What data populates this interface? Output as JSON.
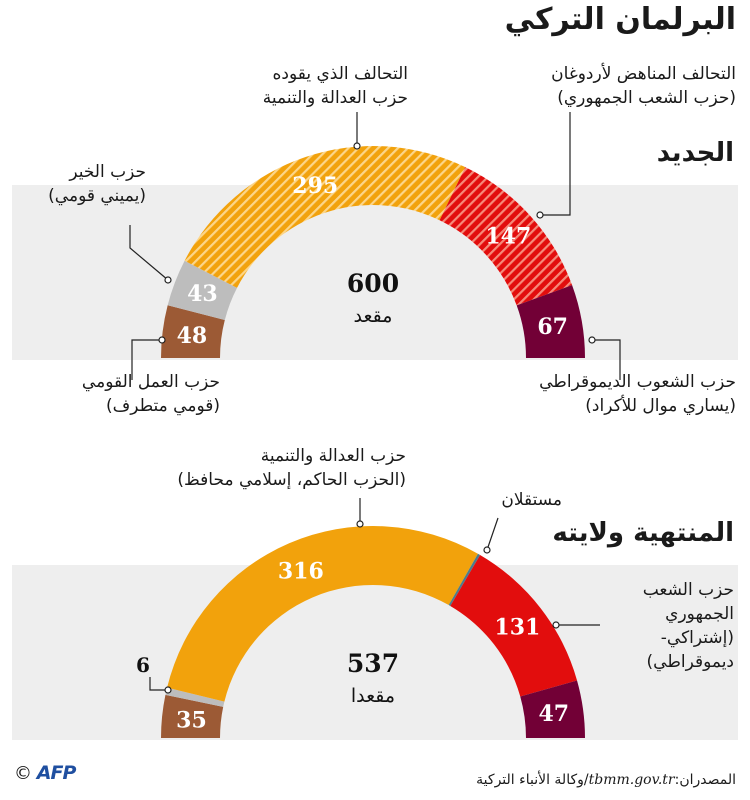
{
  "title": "البرلمان التركي",
  "colors": {
    "akp": "#f2a20c",
    "chp": "#e20d0d",
    "hdp": "#720036",
    "mhp": "#9c5a35",
    "iyi": "#bdbdbd",
    "indep": "#4d7d8c",
    "band": "#eeeeee"
  },
  "chart_data": [
    {
      "type": "pie",
      "subtitle": "الجديد",
      "total": {
        "value": "600",
        "unit": "مقعد"
      },
      "slices": [
        {
          "key": "mhp",
          "value": 48,
          "label": "48",
          "color": "#9c5a35",
          "hatch": false,
          "name_lines": [
            "حزب العمل القومي",
            "(قومي متطرف)"
          ]
        },
        {
          "key": "iyi",
          "value": 43,
          "label": "43",
          "color": "#bdbdbd",
          "hatch": false,
          "name_lines": [
            "حزب الخير",
            "(يميني قومي)"
          ]
        },
        {
          "key": "akp",
          "value": 295,
          "label": "295",
          "color": "#f2a20c",
          "hatch": true,
          "name_lines": [
            "التحالف الذي يقوده",
            "حزب العدالة والتنمية"
          ]
        },
        {
          "key": "chp",
          "value": 147,
          "label": "147",
          "color": "#e20d0d",
          "hatch": true,
          "name_lines": [
            "التحالف المناهض لأردوغان",
            "(حزب الشعب الجمهوري)"
          ]
        },
        {
          "key": "hdp",
          "value": 67,
          "label": "67",
          "color": "#720036",
          "hatch": false,
          "name_lines": [
            "حزب الشعوب الديموقراطي",
            "(يساري موال للأكراد)"
          ]
        }
      ]
    },
    {
      "type": "pie",
      "subtitle": "المنتهية ولايته",
      "total": {
        "value": "537",
        "unit": "مقعدا"
      },
      "slices": [
        {
          "key": "mhp",
          "value": 35,
          "label": "35",
          "color": "#9c5a35",
          "hatch": false,
          "name_lines": []
        },
        {
          "key": "iyi",
          "value": 6,
          "label": "6",
          "color": "#bdbdbd",
          "hatch": false,
          "name_lines": []
        },
        {
          "key": "akp",
          "value": 316,
          "label": "316",
          "color": "#f2a20c",
          "hatch": false,
          "name_lines": [
            "حزب العدالة والتنمية",
            "(الحزب الحاكم، إسلامي محافظ)"
          ]
        },
        {
          "key": "indep",
          "value": 2,
          "label": "",
          "color": "#4d7d8c",
          "hatch": false,
          "name_lines": [
            "مستقلان"
          ]
        },
        {
          "key": "chp",
          "value": 131,
          "label": "131",
          "color": "#e20d0d",
          "hatch": false,
          "name_lines": [
            "حزب الشعب",
            "الجمهوري",
            "(إشتراكي-",
            "ديموقراطي)"
          ]
        },
        {
          "key": "hdp",
          "value": 47,
          "label": "47",
          "color": "#720036",
          "hatch": false,
          "name_lines": []
        }
      ]
    }
  ],
  "source": {
    "prefix": "المصدران:",
    "site": "tbmm.gov.tr",
    "agency": "/وكالة الأنباء التركية"
  },
  "credit": {
    "copyright": "©",
    "agency": "AFP"
  }
}
